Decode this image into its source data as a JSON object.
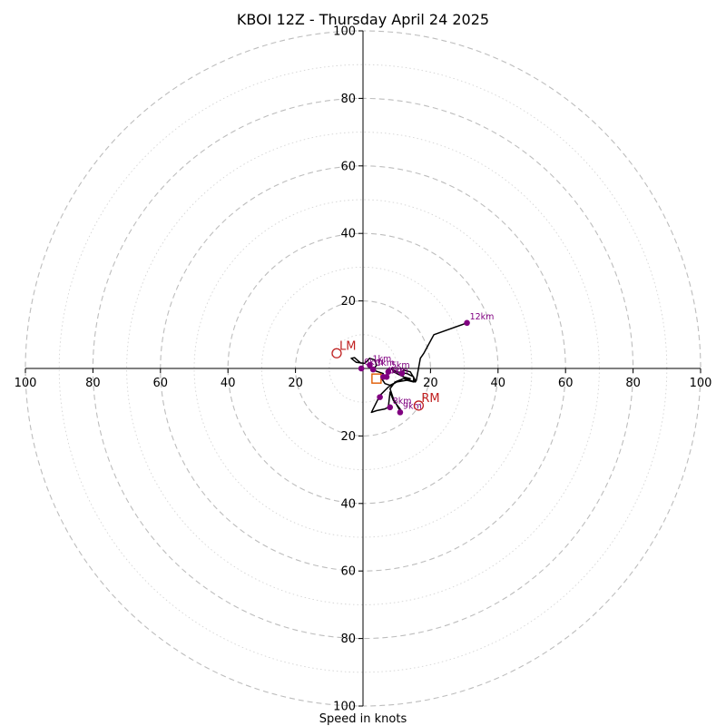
{
  "chart_data": {
    "type": "scatter",
    "title": "KBOI 12Z - Thursday April 24 2025",
    "xlabel": "Speed in knots",
    "ylabel": "",
    "xlim": [
      -100,
      100
    ],
    "ylim": [
      -100,
      100
    ],
    "rings_major": [
      20,
      40,
      60,
      80,
      100
    ],
    "rings_minor": [
      10,
      30,
      50,
      70,
      90
    ],
    "x_ticks": [
      {
        "value": -100,
        "label": "100"
      },
      {
        "value": -80,
        "label": "80"
      },
      {
        "value": -60,
        "label": "60"
      },
      {
        "value": -40,
        "label": "40"
      },
      {
        "value": -20,
        "label": "20"
      },
      {
        "value": 20,
        "label": "20"
      },
      {
        "value": 40,
        "label": "40"
      },
      {
        "value": 60,
        "label": "60"
      },
      {
        "value": 80,
        "label": "80"
      },
      {
        "value": 100,
        "label": "100"
      }
    ],
    "y_ticks": [
      {
        "value": 100,
        "label": "100"
      },
      {
        "value": 80,
        "label": "80"
      },
      {
        "value": 60,
        "label": "60"
      },
      {
        "value": 40,
        "label": "40"
      },
      {
        "value": 20,
        "label": "20"
      },
      {
        "value": -20,
        "label": "20"
      },
      {
        "value": -40,
        "label": "40"
      },
      {
        "value": -60,
        "label": "60"
      },
      {
        "value": -80,
        "label": "80"
      },
      {
        "value": -100,
        "label": "100"
      }
    ],
    "hodograph_trace": [
      [
        -0.5,
        1.5
      ],
      [
        -1.5,
        2.3
      ],
      [
        -2.5,
        3.2
      ],
      [
        -3.5,
        3.0
      ],
      [
        -2.0,
        1.8
      ],
      [
        0.5,
        1.5
      ],
      [
        2.0,
        3.0
      ],
      [
        3.5,
        2.5
      ],
      [
        4.0,
        1.0
      ],
      [
        3.0,
        -0.5
      ],
      [
        4.5,
        -1.0
      ],
      [
        6.0,
        -1.5
      ],
      [
        5.5,
        -3.0
      ],
      [
        6.5,
        -4.5
      ],
      [
        8.0,
        -5.0
      ],
      [
        10.0,
        -4.0
      ],
      [
        13.0,
        -3.5
      ],
      [
        15.0,
        -4.0
      ],
      [
        15.0,
        -2.5
      ],
      [
        13.0,
        -1.5
      ],
      [
        10.0,
        -1.0
      ],
      [
        9.0,
        -0.5
      ],
      [
        8.5,
        0.0
      ],
      [
        9.0,
        -1.0
      ],
      [
        11.0,
        -2.0
      ],
      [
        13.0,
        -3.0
      ],
      [
        15.0,
        -4.0
      ],
      [
        15.5,
        -3.5
      ],
      [
        14.0,
        -1.0
      ],
      [
        12.0,
        -0.5
      ],
      [
        11.0,
        -1.5
      ],
      [
        12.0,
        -2.5
      ],
      [
        14.0,
        -3.0
      ],
      [
        12.0,
        -3.0
      ],
      [
        10.0,
        -4.0
      ],
      [
        7.5,
        -5.5
      ],
      [
        5.0,
        -8.0
      ],
      [
        3.0,
        -12.0
      ],
      [
        2.5,
        -13.0
      ],
      [
        4.0,
        -12.5
      ],
      [
        6.5,
        -12.0
      ],
      [
        7.5,
        -11.5
      ],
      [
        8.0,
        -7.0
      ],
      [
        9.0,
        -9.5
      ],
      [
        11.0,
        -12.0
      ],
      [
        11.2,
        -13.0
      ],
      [
        9.0,
        -9.0
      ],
      [
        8.0,
        -6.0
      ],
      [
        9.5,
        -4.0
      ],
      [
        12.0,
        -3.0
      ],
      [
        15.5,
        -4.0
      ],
      [
        15.8,
        -3.5
      ],
      [
        17.0,
        3.0
      ],
      [
        18.0,
        4.5
      ],
      [
        21.0,
        10.0
      ],
      [
        30.8,
        13.5
      ]
    ],
    "height_points": [
      {
        "label": "0km",
        "u": -0.5,
        "v": 0.0
      },
      {
        "label": "1km",
        "u": 2.0,
        "v": 1.0
      },
      {
        "label": "3km",
        "u": 3.0,
        "v": -0.3
      },
      {
        "label": "4km",
        "u": 6.0,
        "v": -2.5
      },
      {
        "label": "5km",
        "u": 7.5,
        "v": -1.0
      },
      {
        "label": "6km",
        "u": 7.0,
        "v": -2.5
      },
      {
        "label": "",
        "u": 11.5,
        "v": -1.5
      },
      {
        "label": "8km",
        "u": 8.0,
        "v": -11.5
      },
      {
        "label": "",
        "u": 5.0,
        "v": -8.5
      },
      {
        "label": "9km",
        "u": 11.0,
        "v": -13.0
      },
      {
        "label": "12km",
        "u": 30.8,
        "v": 13.5
      }
    ],
    "bunkers_motion": [
      {
        "label": "RM",
        "u": 16.5,
        "v": -11.0
      },
      {
        "label": "LM",
        "u": -7.8,
        "v": 4.5
      }
    ],
    "mean_wind": {
      "u": 4.0,
      "v": -3.0
    },
    "colors": {
      "trace": "#000000",
      "height_points": "#800080",
      "height_labels": "#800080",
      "storm_motion": "#c02020",
      "mean_wind": "#e05a00",
      "grid": "#bdbdbd"
    }
  }
}
